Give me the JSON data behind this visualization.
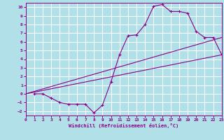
{
  "xlabel": "Windchill (Refroidissement éolien,°C)",
  "background_color": "#b2e0e8",
  "grid_color": "#ffffff",
  "line_color": "#880088",
  "xlim": [
    0,
    23
  ],
  "ylim": [
    -2.5,
    10.5
  ],
  "xticks": [
    0,
    1,
    2,
    3,
    4,
    5,
    6,
    7,
    8,
    9,
    10,
    11,
    12,
    13,
    14,
    15,
    16,
    17,
    18,
    19,
    20,
    21,
    22,
    23
  ],
  "yticks": [
    -2,
    -1,
    0,
    1,
    2,
    3,
    4,
    5,
    6,
    7,
    8,
    9,
    10
  ],
  "curve1_x": [
    1,
    2,
    3,
    4,
    5,
    6,
    7,
    8,
    9,
    10,
    11,
    12,
    13,
    14,
    15,
    16,
    17,
    18,
    19,
    20,
    21,
    22,
    23
  ],
  "curve1_y": [
    0.0,
    0.0,
    -0.5,
    -1.0,
    -1.2,
    -1.2,
    -1.2,
    -2.2,
    -1.3,
    1.4,
    4.5,
    6.7,
    6.8,
    8.0,
    10.1,
    10.3,
    9.5,
    9.5,
    9.3,
    7.2,
    6.5,
    6.5,
    4.5
  ],
  "line1_x": [
    0,
    23
  ],
  "line1_y": [
    0.0,
    4.5
  ],
  "line2_x": [
    0,
    23
  ],
  "line2_y": [
    0.0,
    6.5
  ],
  "marker": "+"
}
